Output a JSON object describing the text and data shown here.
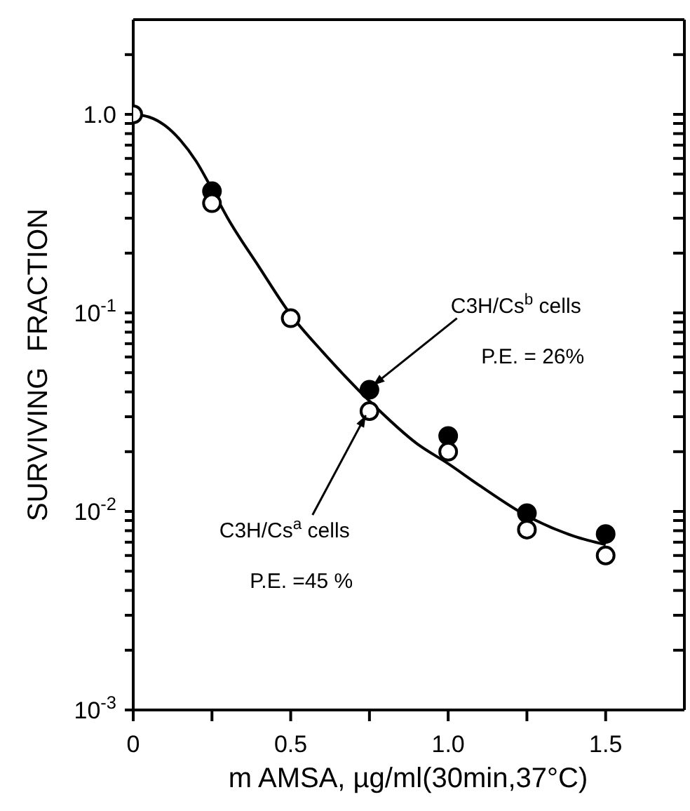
{
  "chart_data": {
    "type": "scatter",
    "xlabel": "m AMSA,  µg/ml(30min,37°C)",
    "ylabel": "SURVIVING  FRACTION",
    "log": "y",
    "marker": "circle",
    "xlim": [
      0,
      1.75
    ],
    "ylim": [
      0.001,
      3
    ],
    "xticks": [
      {
        "value": 0,
        "label": "0"
      },
      {
        "value": 0.25,
        "label": null
      },
      {
        "value": 0.5,
        "label": "0.5"
      },
      {
        "value": 0.75,
        "label": null
      },
      {
        "value": 1,
        "label": "1.0"
      },
      {
        "value": 1.25,
        "label": null
      },
      {
        "value": 1.5,
        "label": "1.5"
      }
    ],
    "yticks": [
      {
        "value": 0.001,
        "label": "10$^{-3}$"
      },
      {
        "value": 0.002,
        "label": null
      },
      {
        "value": 0.003,
        "label": null
      },
      {
        "value": 0.004,
        "label": null
      },
      {
        "value": 0.005,
        "label": null
      },
      {
        "value": 0.006,
        "label": null
      },
      {
        "value": 0.007,
        "label": null
      },
      {
        "value": 0.008,
        "label": null
      },
      {
        "value": 0.009,
        "label": null
      },
      {
        "value": 0.01,
        "label": "10$^{-2}$"
      },
      {
        "value": 0.02,
        "label": null
      },
      {
        "value": 0.03,
        "label": null
      },
      {
        "value": 0.04,
        "label": null
      },
      {
        "value": 0.05,
        "label": null
      },
      {
        "value": 0.06,
        "label": null
      },
      {
        "value": 0.07,
        "label": null
      },
      {
        "value": 0.08,
        "label": null
      },
      {
        "value": 0.09,
        "label": null
      },
      {
        "value": 0.1,
        "label": "10$^{-1}$"
      },
      {
        "value": 0.2,
        "label": null
      },
      {
        "value": 0.3,
        "label": null
      },
      {
        "value": 0.4,
        "label": null
      },
      {
        "value": 0.5,
        "label": null
      },
      {
        "value": 0.6,
        "label": null
      },
      {
        "value": 0.7,
        "label": null
      },
      {
        "value": 0.8,
        "label": null
      },
      {
        "value": 0.9,
        "label": null
      },
      {
        "value": 1,
        "label": "1.0"
      },
      {
        "value": 2,
        "label": null
      }
    ],
    "x": [
      0,
      0.25,
      0.5,
      0.75,
      1.0,
      1.25,
      1.5
    ],
    "series": [
      {
        "color": "#000000",
        "values": [
          null,
          0.41,
          null,
          0.041,
          0.024,
          0.0098,
          0.0077
        ]
      },
      {
        "color": "#ffffff",
        "values": [
          1.0,
          0.357,
          0.094,
          0.032,
          0.02,
          0.0081,
          0.006
        ]
      },
      {
        "type": "line",
        "marker": "none",
        "color": "#000000",
        "x": [
          0,
          0.05,
          0.1,
          0.15,
          0.2,
          0.25,
          0.3,
          0.4,
          0.5,
          0.6,
          0.75,
          0.9,
          1.0,
          1.1,
          1.25,
          1.4,
          1.5
        ],
        "values": [
          1.0,
          0.97,
          0.88,
          0.74,
          0.58,
          0.42,
          0.3,
          0.17,
          0.098,
          0.064,
          0.036,
          0.022,
          0.0174,
          0.0135,
          0.0095,
          0.0075,
          0.0068
        ]
      }
    ],
    "annotations": [
      {
        "text": "C3H/Cs$^{b}$ cells",
        "x": 0.75,
        "y": 0.041
      },
      "P.E. = 26%",
      {
        "text": "C3H/Cs$^{a}$ cells",
        "x": 0.75,
        "y": 0.032
      },
      "P.E. =45 %"
    ]
  }
}
